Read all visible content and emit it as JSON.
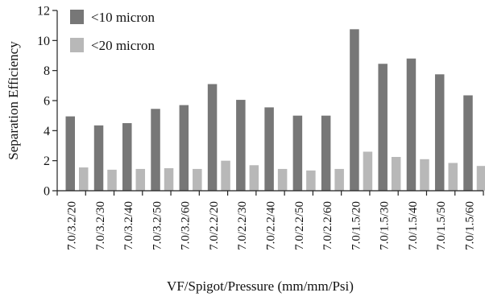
{
  "chart_data": {
    "type": "bar",
    "xlabel": "VF/Spigot/Pressure (mm/mm/Psi)",
    "ylabel": "Separation Efficiency",
    "ylim": [
      0,
      12
    ],
    "yticks": [
      0,
      2,
      4,
      6,
      8,
      10,
      12
    ],
    "grid": false,
    "legend_position": "top-left",
    "categories": [
      "7.0/3.2/20",
      "7.0/3.2/30",
      "7.0/3.2/40",
      "7.0/3.2/50",
      "7.0/3.2/60",
      "7.0/2.2/20",
      "7.0/2.2/30",
      "7.0/2.2/40",
      "7.0/2.2/50",
      "7.0/2.2/60",
      "7.0/1.5/20",
      "7.0/1.5/30",
      "7.0/1.5/40",
      "7.0/1.5/50",
      "7.0/1.5/60"
    ],
    "series": [
      {
        "name": "<10 micron",
        "color": "#777777",
        "values": [
          4.95,
          4.35,
          4.5,
          5.45,
          5.7,
          7.1,
          6.05,
          5.55,
          5.0,
          5.0,
          10.75,
          8.45,
          8.8,
          7.75,
          6.35
        ]
      },
      {
        "name": "<20 micron",
        "color": "#b8b8b8",
        "values": [
          1.55,
          1.4,
          1.45,
          1.5,
          1.45,
          2.0,
          1.7,
          1.45,
          1.35,
          1.45,
          2.6,
          2.25,
          2.1,
          1.85,
          1.65
        ]
      }
    ]
  }
}
